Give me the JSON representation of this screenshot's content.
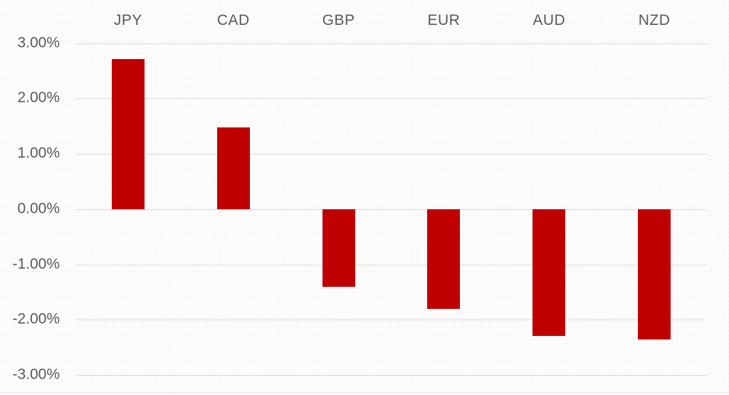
{
  "chart_data": {
    "type": "bar",
    "title": "",
    "xlabel": "",
    "ylabel": "",
    "categories": [
      "JPY",
      "CAD",
      "GBP",
      "EUR",
      "AUD",
      "NZD"
    ],
    "values": [
      2.71,
      1.48,
      -1.4,
      -1.8,
      -2.29,
      -2.36
    ],
    "yticks": [
      3,
      2,
      1,
      0,
      -1,
      -2,
      -3
    ],
    "ytick_labels": [
      "3.00%",
      "2.00%",
      "1.00%",
      "0.00%",
      "-1.00%",
      "-2.00%",
      "-3.00%"
    ],
    "ylim": [
      -3.36,
      3.78
    ],
    "grid": true,
    "legend_position": "none",
    "category_axis_position": "top"
  },
  "colors": {
    "bar": "#c00000",
    "gridline": "#d9d9d9",
    "label": "#595959",
    "background": "#fcfcfc"
  }
}
